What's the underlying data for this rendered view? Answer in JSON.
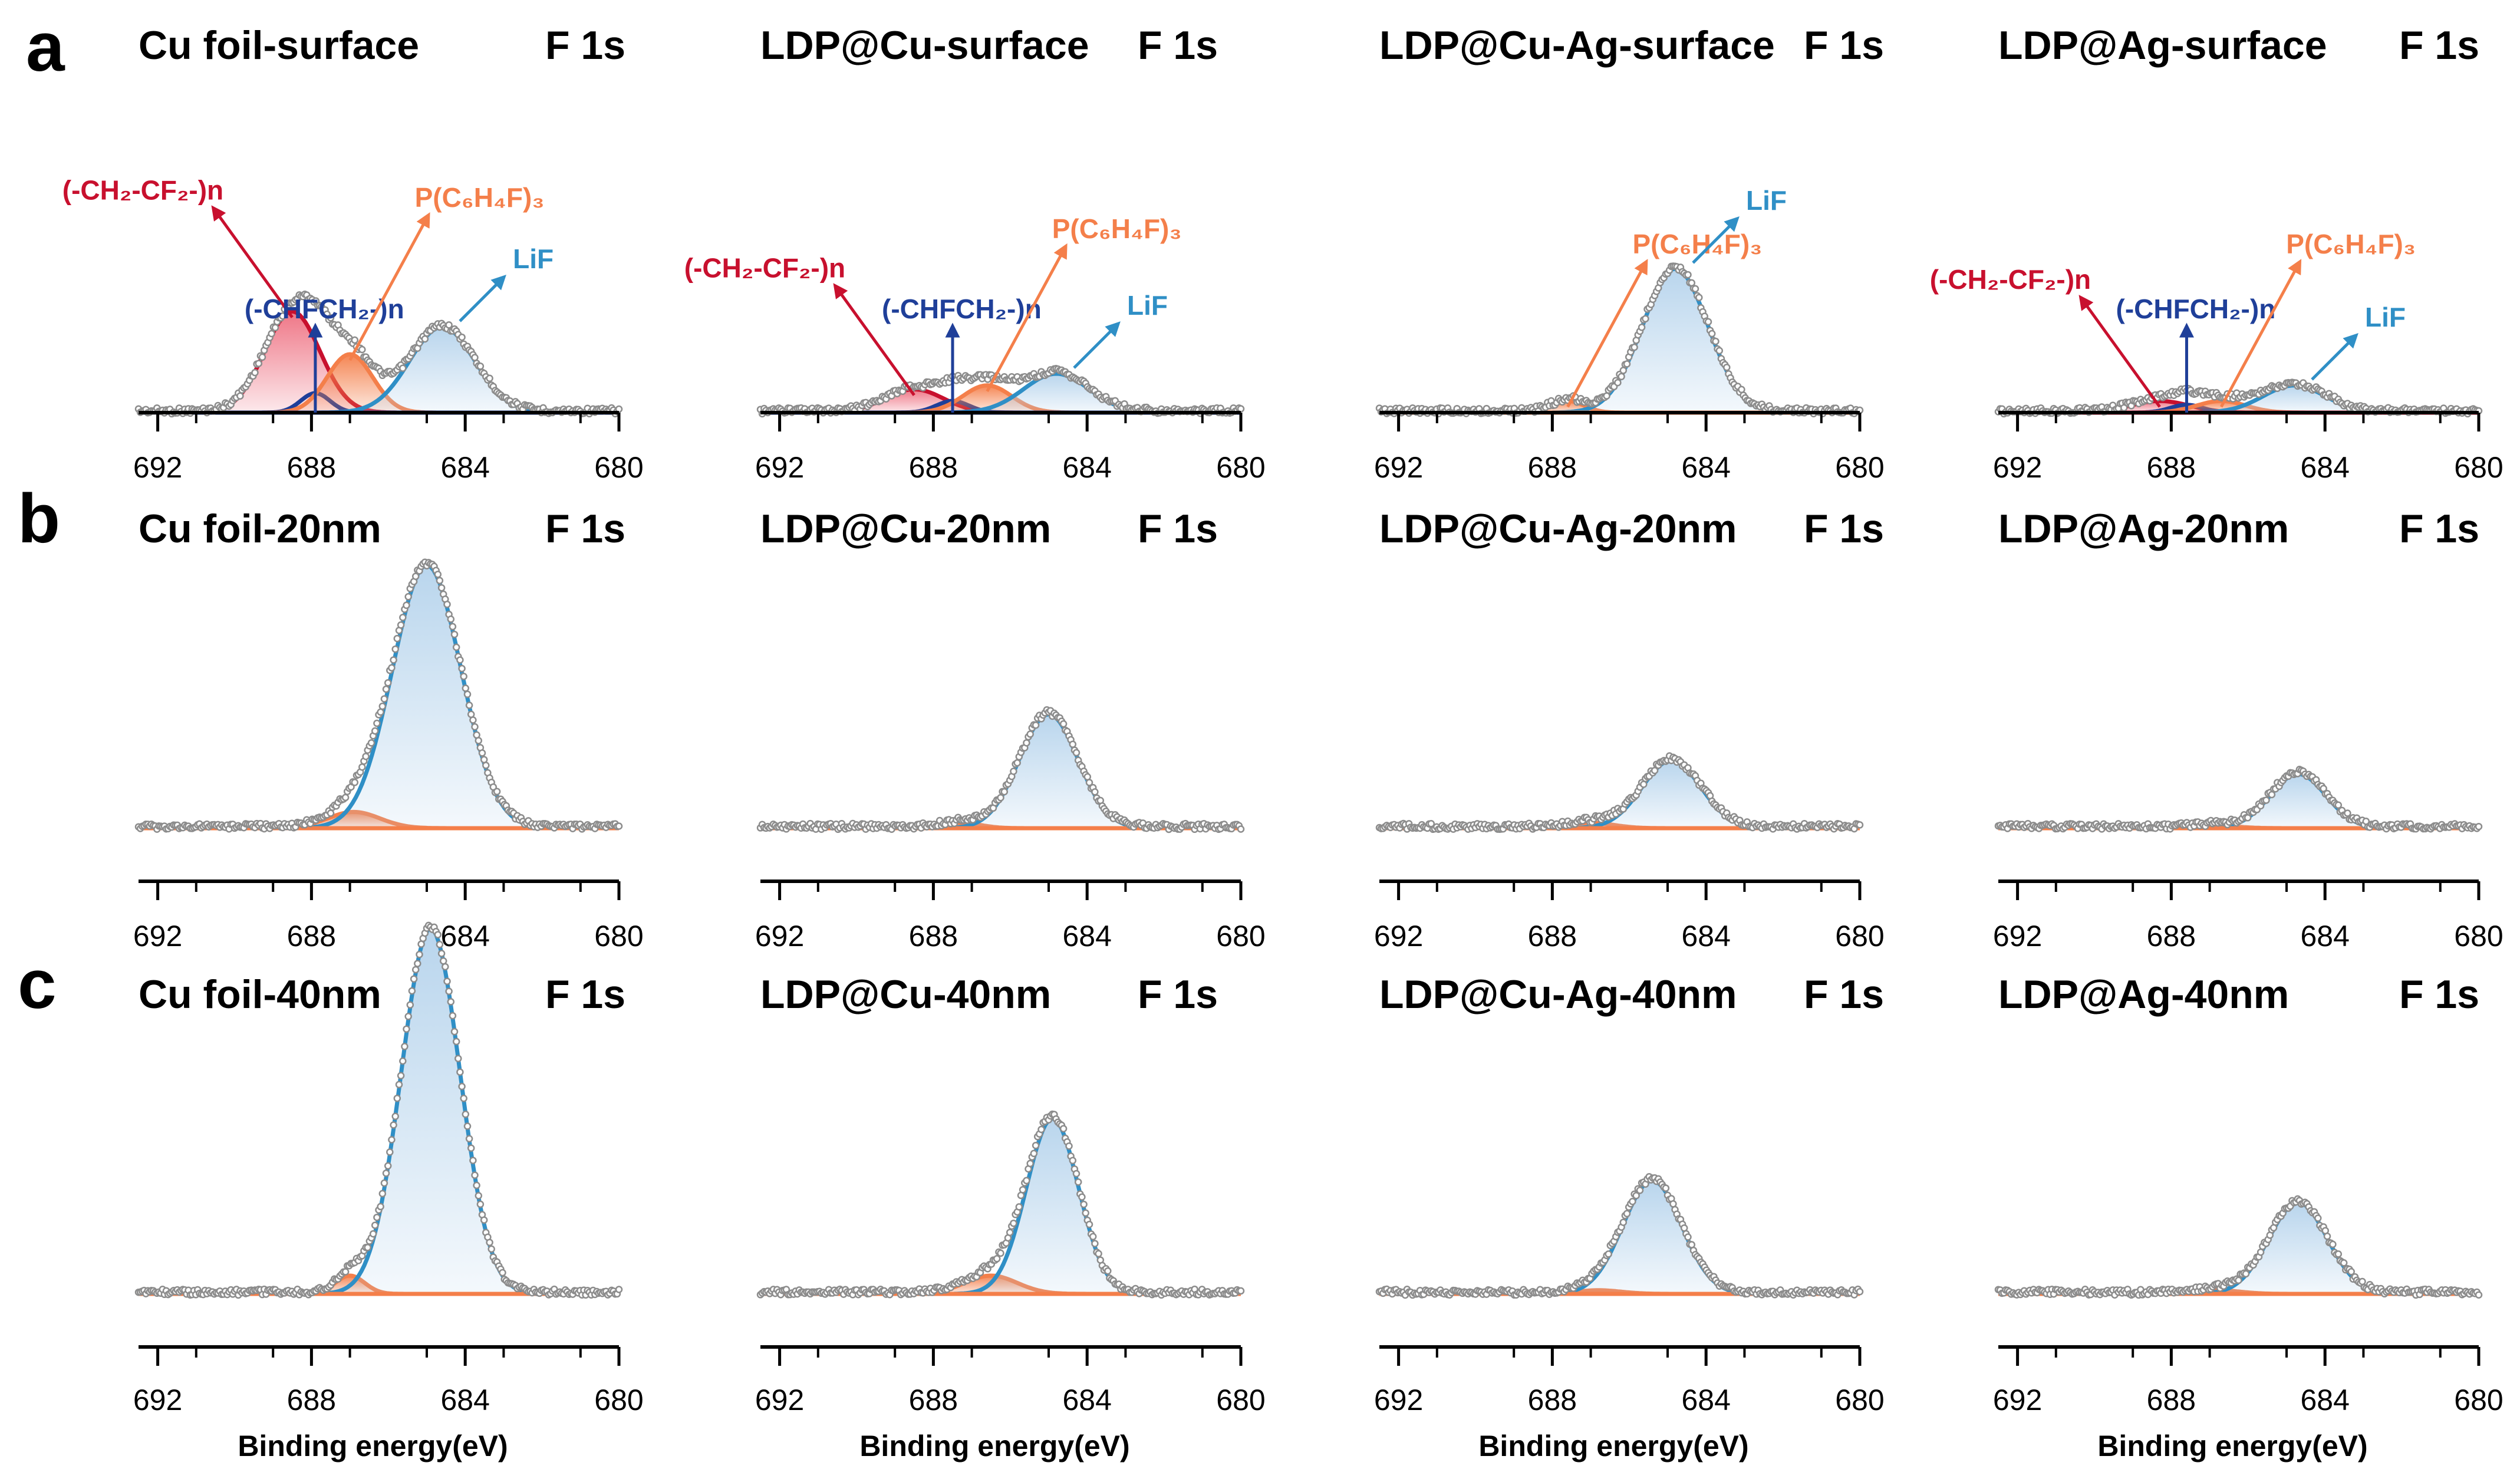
{
  "figure": {
    "x_axis_label": "Binding energy(eV)",
    "colors": {
      "lif": "#2f8fc6",
      "lif_fill": "#b5d3ec",
      "pc6h4f3": "#f47f4a",
      "cf2": "#c8102e",
      "cf2_fill": "#ee6f80",
      "chfch2": "#1f3f99",
      "raw": "#8c8c8c",
      "baseline": "#f47f4a",
      "axis": "#000000"
    }
  },
  "chart_data": [
    {
      "type": "line",
      "row": "a",
      "title": "Cu foil-surface",
      "core_level": "F 1s",
      "xlim": [
        692.5,
        680
      ],
      "xticks": [
        692,
        688,
        684,
        680
      ],
      "baseline_color": "chfch2",
      "series": [
        {
          "name": "(-CH2-CF2-)n",
          "label_text": "(-CH₂-CF₂-)n",
          "color": "cf2",
          "fill": "cf2_fill",
          "center": 688.5,
          "fwhm": 1.7,
          "height": 0.26
        },
        {
          "name": "(-CHFCH2-)n",
          "label_text": "(-CHFCH₂-)n",
          "color": "chfch2",
          "fill": "none",
          "center": 687.9,
          "fwhm": 0.9,
          "height": 0.05
        },
        {
          "name": "P(C6H4F)3",
          "label_text": "P(C₆H₄F)₃",
          "color": "pc6h4f3",
          "fill": "pc6h4f3",
          "center": 687.0,
          "fwhm": 1.4,
          "height": 0.15
        },
        {
          "name": "LiF",
          "label_text": "LiF",
          "color": "lif",
          "fill": "lif_fill",
          "center": 684.6,
          "fwhm": 2.0,
          "height": 0.22
        }
      ]
    },
    {
      "type": "line",
      "row": "a",
      "title": "LDP@Cu-surface",
      "core_level": "F 1s",
      "xlim": [
        692.5,
        680
      ],
      "xticks": [
        692,
        688,
        684,
        680
      ],
      "baseline_color": "chfch2",
      "series": [
        {
          "name": "(-CH2-CF2-)n",
          "label_text": "(-CH₂-CF₂-)n",
          "color": "cf2",
          "fill": "cf2_fill",
          "center": 688.5,
          "fwhm": 1.8,
          "height": 0.06
        },
        {
          "name": "(-CHFCH2-)n",
          "label_text": "(-CHFCH₂-)n",
          "color": "chfch2",
          "fill": "none",
          "center": 687.5,
          "fwhm": 1.0,
          "height": 0.03
        },
        {
          "name": "P(C6H4F)3",
          "label_text": "P(C₆H₄F)₃",
          "color": "pc6h4f3",
          "fill": "pc6h4f3",
          "center": 686.6,
          "fwhm": 1.5,
          "height": 0.07
        },
        {
          "name": "LiF",
          "label_text": "LiF",
          "color": "lif",
          "fill": "lif_fill",
          "center": 684.8,
          "fwhm": 2.0,
          "height": 0.1
        }
      ]
    },
    {
      "type": "line",
      "row": "a",
      "title": "LDP@Cu-Ag-surface",
      "core_level": "F 1s",
      "xlim": [
        692.5,
        680
      ],
      "xticks": [
        692,
        688,
        684,
        680
      ],
      "baseline_color": "pc6h4f3",
      "series": [
        {
          "name": "P(C6H4F)3",
          "label_text": "P(C₆H₄F)₃",
          "color": "pc6h4f3",
          "fill": "pc6h4f3",
          "center": 687.6,
          "fwhm": 1.0,
          "height": 0.03
        },
        {
          "name": "LiF",
          "label_text": "LiF",
          "color": "lif",
          "fill": "lif_fill",
          "center": 684.8,
          "fwhm": 2.0,
          "height": 0.37
        }
      ]
    },
    {
      "type": "line",
      "row": "a",
      "title": "LDP@Ag-surface",
      "core_level": "F 1s",
      "xlim": [
        692.5,
        680
      ],
      "xticks": [
        692,
        688,
        684,
        680
      ],
      "baseline_color": "cf2",
      "series": [
        {
          "name": "(-CH2-CF2-)n",
          "label_text": "(-CH₂-CF₂-)n",
          "color": "cf2",
          "fill": "cf2_fill",
          "center": 688.3,
          "fwhm": 1.8,
          "height": 0.03
        },
        {
          "name": "(-CHFCH2-)n",
          "label_text": "(-CHFCH₂-)n",
          "color": "chfch2",
          "fill": "none",
          "center": 687.6,
          "fwhm": 1.0,
          "height": 0.02
        },
        {
          "name": "P(C6H4F)3",
          "label_text": "P(C₆H₄F)₃",
          "color": "pc6h4f3",
          "fill": "pc6h4f3",
          "center": 686.7,
          "fwhm": 1.5,
          "height": 0.03
        },
        {
          "name": "LiF",
          "label_text": "LiF",
          "color": "lif",
          "fill": "lif_fill",
          "center": 684.8,
          "fwhm": 1.9,
          "height": 0.07
        }
      ]
    },
    {
      "type": "line",
      "row": "b",
      "title": "Cu foil-20nm",
      "core_level": "F 1s",
      "xlim": [
        692.5,
        680
      ],
      "xticks": [
        692,
        688,
        684,
        680
      ],
      "baseline_color": "pc6h4f3",
      "series": [
        {
          "name": "P(C6H4F)3",
          "color": "pc6h4f3",
          "fill": "pc6h4f3",
          "center": 686.9,
          "fwhm": 1.6,
          "height": 0.06
        },
        {
          "name": "LiF",
          "color": "lif",
          "fill": "lif_fill",
          "center": 685.0,
          "fwhm": 2.1,
          "height": 0.97
        }
      ]
    },
    {
      "type": "line",
      "row": "b",
      "title": "LDP@Cu-20nm",
      "core_level": "F 1s",
      "xlim": [
        692.5,
        680
      ],
      "xticks": [
        692,
        688,
        684,
        680
      ],
      "baseline_color": "pc6h4f3",
      "series": [
        {
          "name": "P(C6H4F)3",
          "color": "pc6h4f3",
          "fill": "pc6h4f3",
          "center": 687.3,
          "fwhm": 1.2,
          "height": 0.02
        },
        {
          "name": "LiF",
          "color": "lif",
          "fill": "lif_fill",
          "center": 685.0,
          "fwhm": 1.8,
          "height": 0.42
        }
      ]
    },
    {
      "type": "line",
      "row": "b",
      "title": "LDP@Cu-Ag-20nm",
      "core_level": "F 1s",
      "xlim": [
        692.5,
        680
      ],
      "xticks": [
        692,
        688,
        684,
        680
      ],
      "baseline_color": "pc6h4f3",
      "series": [
        {
          "name": "P(C6H4F)3",
          "color": "pc6h4f3",
          "fill": "pc6h4f3",
          "center": 687.0,
          "fwhm": 1.4,
          "height": 0.02
        },
        {
          "name": "LiF",
          "color": "lif",
          "fill": "lif_fill",
          "center": 684.9,
          "fwhm": 1.8,
          "height": 0.25
        }
      ]
    },
    {
      "type": "line",
      "row": "b",
      "title": "LDP@Ag-20nm",
      "core_level": "F 1s",
      "xlim": [
        692.5,
        680
      ],
      "xticks": [
        692,
        688,
        684,
        680
      ],
      "baseline_color": "pc6h4f3",
      "series": [
        {
          "name": "P(C6H4F)3",
          "color": "pc6h4f3",
          "fill": "pc6h4f3",
          "center": 686.9,
          "fwhm": 1.4,
          "height": 0.01
        },
        {
          "name": "LiF",
          "color": "lif",
          "fill": "lif_fill",
          "center": 684.7,
          "fwhm": 1.7,
          "height": 0.2
        }
      ]
    },
    {
      "type": "line",
      "row": "c",
      "title": "Cu foil-40nm",
      "core_level": "F 1s",
      "xlim": [
        692.5,
        680
      ],
      "xticks": [
        692,
        688,
        684,
        680
      ],
      "baseline_color": "pc6h4f3",
      "series": [
        {
          "name": "P(C6H4F)3",
          "color": "pc6h4f3",
          "fill": "pc6h4f3",
          "center": 687.0,
          "fwhm": 0.9,
          "height": 0.05
        },
        {
          "name": "LiF",
          "color": "lif",
          "fill": "lif_fill",
          "center": 684.9,
          "fwhm": 1.8,
          "height": 1.0
        }
      ]
    },
    {
      "type": "line",
      "row": "c",
      "title": "LDP@Cu-40nm",
      "core_level": "F 1s",
      "xlim": [
        692.5,
        680
      ],
      "xticks": [
        692,
        688,
        684,
        680
      ],
      "baseline_color": "pc6h4f3",
      "series": [
        {
          "name": "P(C6H4F)3",
          "color": "pc6h4f3",
          "fill": "pc6h4f3",
          "center": 686.5,
          "fwhm": 1.6,
          "height": 0.05
        },
        {
          "name": "LiF",
          "color": "lif",
          "fill": "lif_fill",
          "center": 684.9,
          "fwhm": 1.6,
          "height": 0.48
        }
      ]
    },
    {
      "type": "line",
      "row": "c",
      "title": "LDP@Cu-Ag-40nm",
      "core_level": "F 1s",
      "xlim": [
        692.5,
        680
      ],
      "xticks": [
        692,
        688,
        684,
        680
      ],
      "baseline_color": "pc6h4f3",
      "series": [
        {
          "name": "P(C6H4F)3",
          "color": "pc6h4f3",
          "fill": "pc6h4f3",
          "center": 686.8,
          "fwhm": 1.4,
          "height": 0.01
        },
        {
          "name": "LiF",
          "color": "lif",
          "fill": "lif_fill",
          "center": 685.4,
          "fwhm": 1.8,
          "height": 0.31
        }
      ]
    },
    {
      "type": "line",
      "row": "c",
      "title": "LDP@Ag-40nm",
      "core_level": "F 1s",
      "xlim": [
        692.5,
        680
      ],
      "xticks": [
        692,
        688,
        684,
        680
      ],
      "baseline_color": "pc6h4f3",
      "series": [
        {
          "name": "P(C6H4F)3",
          "color": "pc6h4f3",
          "fill": "pc6h4f3",
          "center": 686.8,
          "fwhm": 1.4,
          "height": 0.01
        },
        {
          "name": "LiF",
          "color": "lif",
          "fill": "lif_fill",
          "center": 684.7,
          "fwhm": 1.8,
          "height": 0.25
        }
      ]
    }
  ]
}
